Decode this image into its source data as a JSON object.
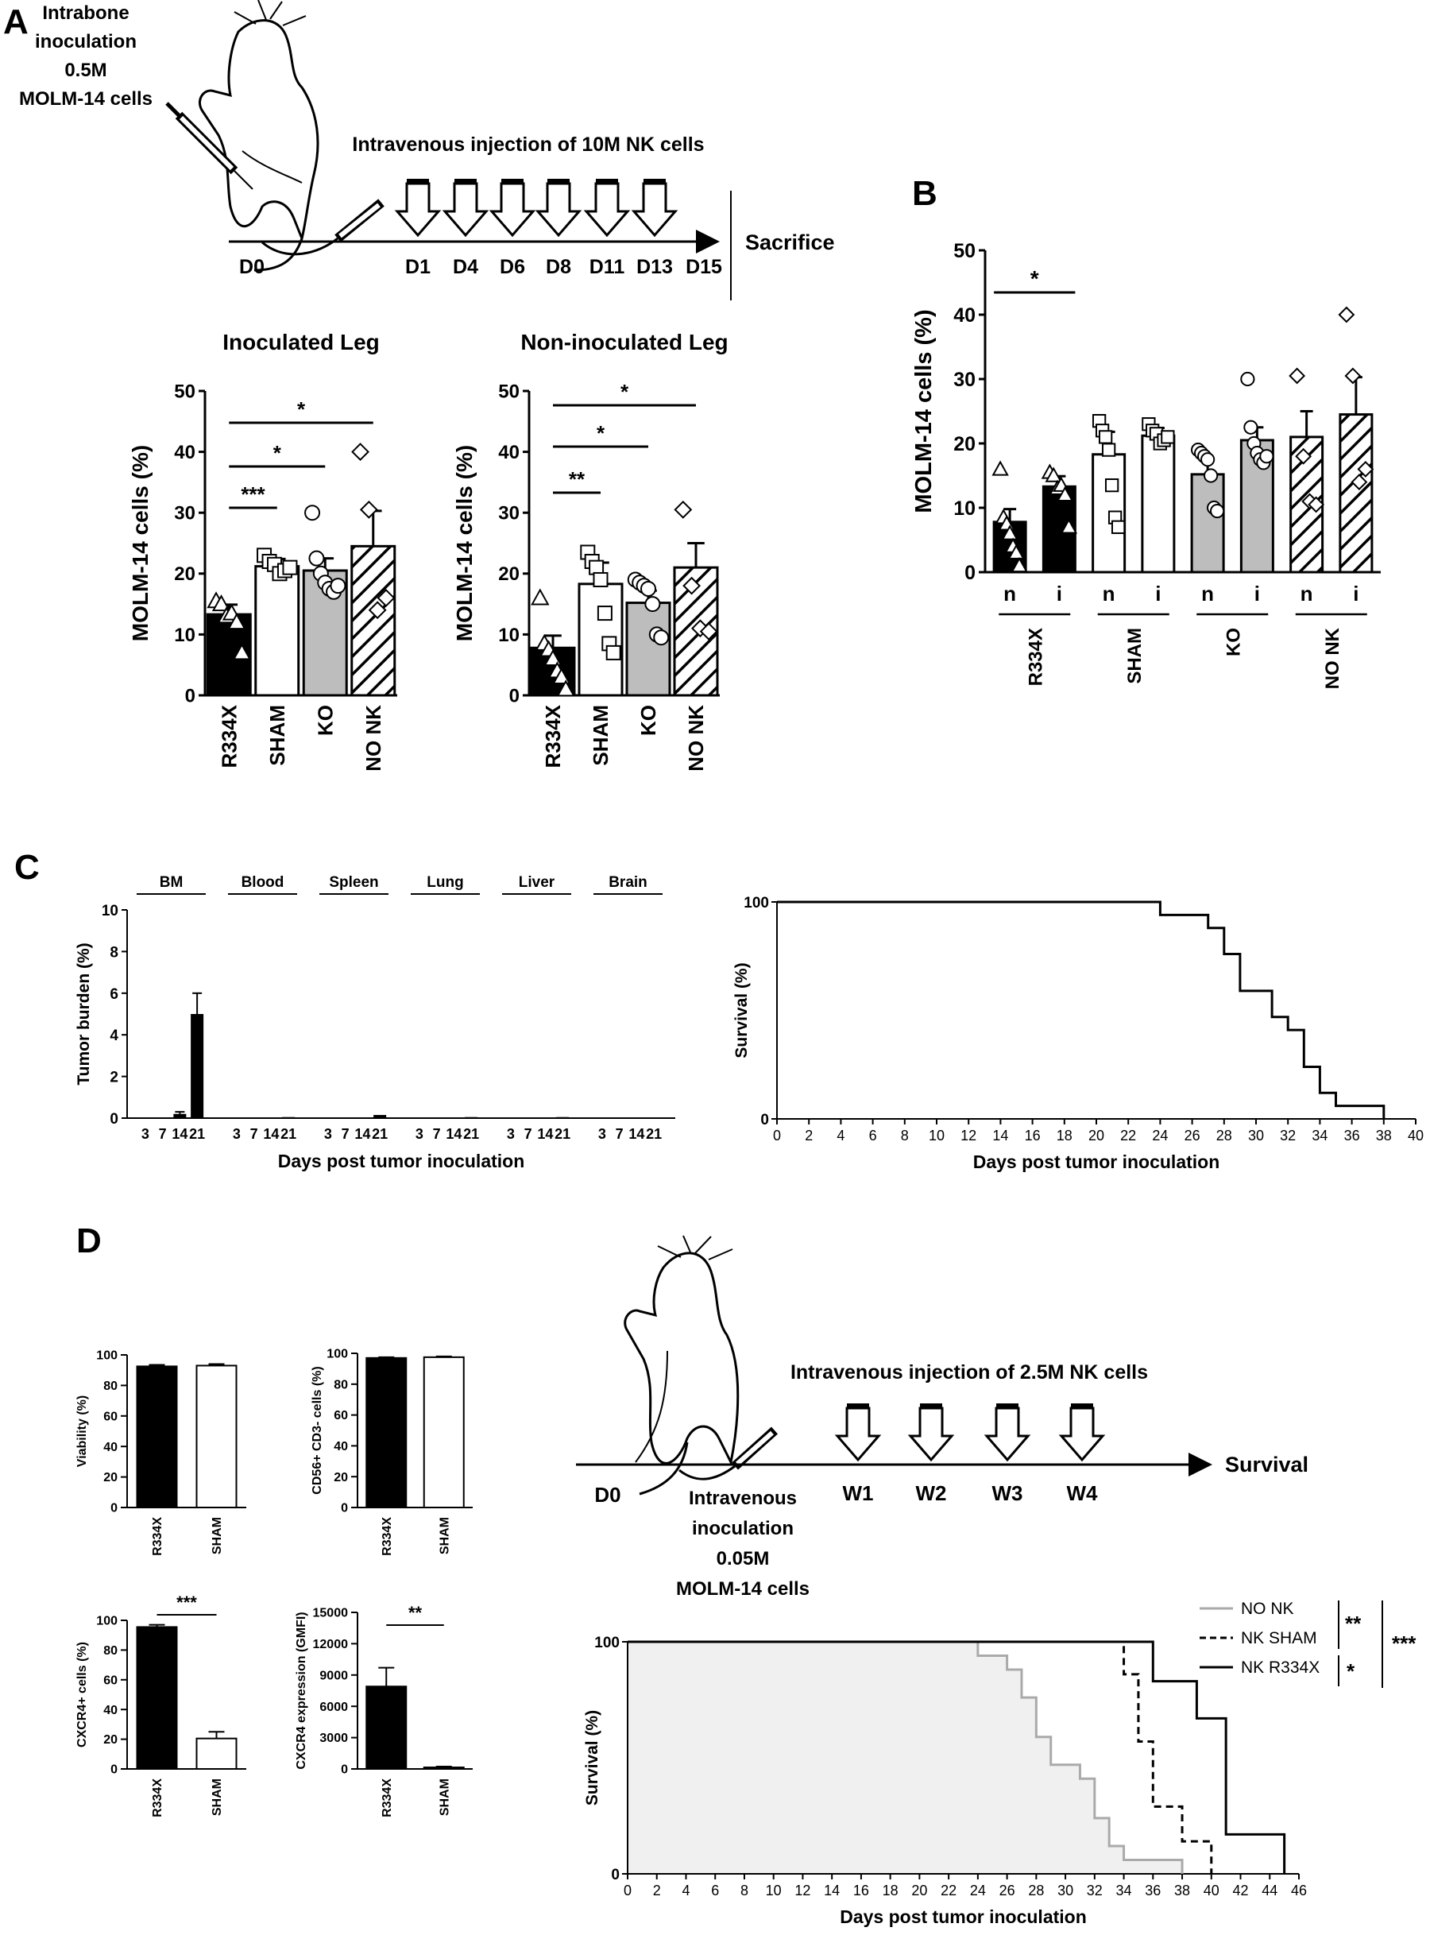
{
  "panels": {
    "A": {
      "letter": "A",
      "inoculation_lines": [
        "Intrabone",
        "inoculation",
        "0.5M",
        "MOLM-14 cells"
      ],
      "injection_title": "Intravenous injection of 10M NK cells",
      "timeline_days": [
        "D0",
        "D1",
        "D4",
        "D6",
        "D8",
        "D11",
        "D13",
        "D15"
      ],
      "end_label": "Sacrifice"
    },
    "B": {
      "letter": "B"
    },
    "C": {
      "letter": "C",
      "organs": [
        "BM",
        "Blood",
        "Spleen",
        "Lung",
        "Liver",
        "Brain"
      ]
    },
    "D": {
      "letter": "D",
      "injection_title": "Intravenous injection of 2.5M NK cells",
      "day0": "D0",
      "weeks": [
        "W1",
        "W2",
        "W3",
        "W4"
      ],
      "end_label": "Survival",
      "inoculation_lines": [
        "Intravenous",
        "inoculation",
        "0.05M",
        "MOLM-14 cells"
      ]
    }
  },
  "chart_data": [
    {
      "id": "A-inoculated",
      "type": "bar",
      "title": "Inoculated Leg",
      "ylabel": "MOLM-14 cells (%)",
      "ylim": [
        0,
        50
      ],
      "yticks": [
        0,
        10,
        20,
        30,
        40,
        50
      ],
      "categories": [
        "R334X",
        "SHAM",
        "KO",
        "NO NK"
      ],
      "values": [
        13.3,
        21.2,
        20.5,
        24.5
      ],
      "errors": [
        1.6,
        1.2,
        2.0,
        5.8
      ],
      "fills": [
        "black",
        "white",
        "gray",
        "hatch"
      ],
      "points": [
        [
          15.5,
          15.0,
          13.0,
          13.5,
          12.0,
          7.0
        ],
        [
          23.0,
          22.0,
          21.5,
          20.0,
          20.5,
          21.0
        ],
        [
          30.0,
          22.5,
          20.0,
          18.5,
          17.5,
          17.0,
          18.0
        ],
        [
          40.0,
          30.5,
          14.0,
          16.0
        ]
      ],
      "markers": [
        "triangle",
        "square",
        "circle",
        "diamond"
      ],
      "significance": [
        {
          "from": 0,
          "to": 1,
          "label": "***"
        },
        {
          "from": 0,
          "to": 2,
          "label": "*"
        },
        {
          "from": 0,
          "to": 3,
          "label": "*"
        }
      ]
    },
    {
      "id": "A-noninoculated",
      "type": "bar",
      "title": "Non-inoculated Leg",
      "ylabel": "MOLM-14 cells (%)",
      "ylim": [
        0,
        50
      ],
      "yticks": [
        0,
        10,
        20,
        30,
        40,
        50
      ],
      "categories": [
        "R334X",
        "SHAM",
        "KO",
        "NO NK"
      ],
      "values": [
        7.8,
        18.3,
        15.2,
        21.0
      ],
      "errors": [
        2.0,
        3.5,
        2.0,
        4.0
      ],
      "fills": [
        "black",
        "white",
        "gray",
        "hatch"
      ],
      "points": [
        [
          16.0,
          8.5,
          7.5,
          6.0,
          4.0,
          3.0,
          1.0
        ],
        [
          23.5,
          22.0,
          21.0,
          19.0,
          13.5,
          8.5,
          7.0
        ],
        [
          19.0,
          18.5,
          18.0,
          17.5,
          15.0,
          10.0,
          9.5
        ],
        [
          30.5,
          18.0,
          11.0,
          10.5
        ]
      ],
      "markers": [
        "triangle",
        "square",
        "circle",
        "diamond"
      ],
      "significance": [
        {
          "from": 0,
          "to": 1,
          "label": "**"
        },
        {
          "from": 0,
          "to": 2,
          "label": "*"
        },
        {
          "from": 0,
          "to": 3,
          "label": "*"
        }
      ]
    },
    {
      "id": "B",
      "type": "bar",
      "ylabel": "MOLM-14 cells (%)",
      "ylim": [
        0,
        50
      ],
      "yticks": [
        0,
        10,
        20,
        30,
        40,
        50
      ],
      "categories": [
        "n",
        "i",
        "n",
        "i",
        "n",
        "i",
        "n",
        "i"
      ],
      "groups": [
        "R334X",
        "SHAM",
        "KO",
        "NO NK"
      ],
      "values": [
        7.8,
        13.3,
        18.3,
        21.2,
        15.2,
        20.5,
        21.0,
        24.5
      ],
      "errors": [
        2.0,
        1.6,
        3.5,
        1.2,
        2.0,
        2.0,
        4.0,
        5.8
      ],
      "fills": [
        "black",
        "black",
        "white",
        "white",
        "gray",
        "gray",
        "hatch",
        "hatch"
      ],
      "points": [
        [
          16.0,
          8.5,
          7.5,
          6.0,
          4.0,
          3.0,
          1.0
        ],
        [
          15.5,
          15.0,
          13.0,
          13.5,
          12.0,
          7.0
        ],
        [
          23.5,
          22.0,
          21.0,
          19.0,
          13.5,
          8.5,
          7.0
        ],
        [
          23.0,
          22.0,
          21.5,
          20.0,
          20.5,
          21.0
        ],
        [
          19.0,
          18.5,
          18.0,
          17.5,
          15.0,
          10.0,
          9.5
        ],
        [
          30.0,
          22.5,
          20.0,
          18.5,
          17.5,
          17.0,
          18.0
        ],
        [
          30.5,
          18.0,
          11.0,
          10.5
        ],
        [
          40.0,
          30.5,
          14.0,
          16.0
        ]
      ],
      "markers": [
        "triangle",
        "triangle",
        "square",
        "square",
        "circle",
        "circle",
        "diamond",
        "diamond"
      ],
      "significance": [
        {
          "from": 0,
          "to": 1,
          "label": "*"
        }
      ]
    },
    {
      "id": "C-burden",
      "type": "bar",
      "ylabel": "Tumor burden (%)",
      "xlabel": "Days post tumor inoculation",
      "ylim": [
        0,
        10
      ],
      "yticks": [
        0,
        2,
        4,
        6,
        8,
        10
      ],
      "x_ticks": [
        "3",
        "7",
        "14",
        "21"
      ],
      "series": [
        {
          "name": "BM",
          "values": [
            0,
            0,
            0.2,
            5.0
          ],
          "errors": [
            0,
            0,
            0.1,
            1.0
          ]
        },
        {
          "name": "Blood",
          "values": [
            0,
            0,
            0,
            0.05
          ],
          "errors": [
            0,
            0,
            0,
            0
          ]
        },
        {
          "name": "Spleen",
          "values": [
            0,
            0,
            0,
            0.15
          ],
          "errors": [
            0,
            0,
            0,
            0
          ]
        },
        {
          "name": "Lung",
          "values": [
            0,
            0,
            0,
            0.05
          ],
          "errors": [
            0,
            0,
            0,
            0
          ]
        },
        {
          "name": "Liver",
          "values": [
            0,
            0,
            0,
            0.05
          ],
          "errors": [
            0,
            0,
            0,
            0
          ]
        },
        {
          "name": "Brain",
          "values": [
            0,
            0,
            0,
            0
          ],
          "errors": [
            0,
            0,
            0,
            0
          ]
        }
      ]
    },
    {
      "id": "C-survival",
      "type": "line",
      "ylabel": "Survival (%)",
      "xlabel": "Days post tumor inoculation",
      "xlim": [
        0,
        40
      ],
      "ylim": [
        0,
        100
      ],
      "xticks": [
        0,
        2,
        4,
        6,
        8,
        10,
        12,
        14,
        16,
        18,
        20,
        22,
        24,
        26,
        28,
        30,
        32,
        34,
        36,
        38,
        40
      ],
      "yticks": [
        0,
        100
      ],
      "series": [
        {
          "x": [
            0,
            24,
            27,
            28,
            29,
            31,
            32,
            33,
            34,
            35,
            38
          ],
          "y": [
            100,
            94,
            88,
            76,
            59,
            47,
            41,
            24,
            12,
            6,
            0
          ]
        }
      ]
    },
    {
      "id": "D-viability",
      "type": "bar",
      "ylabel": "Viability (%)",
      "ylim": [
        0,
        100
      ],
      "yticks": [
        0,
        20,
        40,
        60,
        80,
        100
      ],
      "categories": [
        "R334X",
        "SHAM"
      ],
      "values": [
        92.5,
        93.0
      ],
      "errors": [
        1.0,
        1.0
      ],
      "fills": [
        "black",
        "white"
      ]
    },
    {
      "id": "D-cd56",
      "type": "bar",
      "ylabel": "CD56+ CD3- cells (%)",
      "ylim": [
        0,
        100
      ],
      "yticks": [
        0,
        20,
        40,
        60,
        80,
        100
      ],
      "categories": [
        "R334X",
        "SHAM"
      ],
      "values": [
        97.0,
        97.5
      ],
      "errors": [
        0.5,
        0.5
      ],
      "fills": [
        "black",
        "white"
      ]
    },
    {
      "id": "D-cxcr4pos",
      "type": "bar",
      "ylabel": "CXCR4+ cells (%)",
      "ylim": [
        0,
        100
      ],
      "yticks": [
        0,
        20,
        40,
        60,
        80,
        100
      ],
      "categories": [
        "R334X",
        "SHAM"
      ],
      "values": [
        95.5,
        20.5
      ],
      "errors": [
        1.5,
        4.5
      ],
      "fills": [
        "black",
        "white"
      ],
      "significance": [
        {
          "from": 0,
          "to": 1,
          "label": "***"
        }
      ]
    },
    {
      "id": "D-cxcr4gmfi",
      "type": "bar",
      "ylabel": "CXCR4 expression (GMFI)",
      "ylim": [
        0,
        15000
      ],
      "yticks": [
        0,
        3000,
        6000,
        9000,
        12000,
        15000
      ],
      "categories": [
        "R334X",
        "SHAM"
      ],
      "values": [
        7900,
        150
      ],
      "errors": [
        1800,
        80
      ],
      "fills": [
        "black",
        "white"
      ],
      "significance": [
        {
          "from": 0,
          "to": 1,
          "label": "**"
        }
      ]
    },
    {
      "id": "D-survival",
      "type": "line",
      "ylabel": "Survival (%)",
      "xlabel": "Days post  tumor inoculation",
      "xlim": [
        0,
        46
      ],
      "ylim": [
        0,
        100
      ],
      "xticks": [
        0,
        2,
        4,
        6,
        8,
        10,
        12,
        14,
        16,
        18,
        20,
        22,
        24,
        26,
        28,
        30,
        32,
        34,
        36,
        38,
        40,
        42,
        44,
        46
      ],
      "yticks": [
        0,
        100
      ],
      "series": [
        {
          "name": "NO NK",
          "color": "#aaaaaa",
          "style": "solid",
          "x": [
            0,
            24,
            26,
            27,
            28,
            29,
            31,
            32,
            33,
            34,
            35,
            38
          ],
          "y": [
            100,
            94,
            88,
            76,
            59,
            47,
            41,
            24,
            12,
            6,
            6,
            0
          ]
        },
        {
          "name": "NK SHAM",
          "color": "#000000",
          "style": "dashed",
          "x": [
            0,
            34,
            35,
            36,
            38,
            40
          ],
          "y": [
            100,
            86,
            57,
            29,
            14,
            0
          ]
        },
        {
          "name": "NK R334X",
          "color": "#000000",
          "style": "solid",
          "x": [
            0,
            36,
            39,
            41,
            45
          ],
          "y": [
            100,
            83,
            67,
            17,
            0
          ]
        }
      ],
      "significance": [
        {
          "pair": [
            "NO NK",
            "NK SHAM"
          ],
          "label": "**"
        },
        {
          "pair": [
            "NK SHAM",
            "NK R334X"
          ],
          "label": "*"
        },
        {
          "pair": [
            "NO NK",
            "NK R334X"
          ],
          "label": "***"
        }
      ]
    }
  ]
}
